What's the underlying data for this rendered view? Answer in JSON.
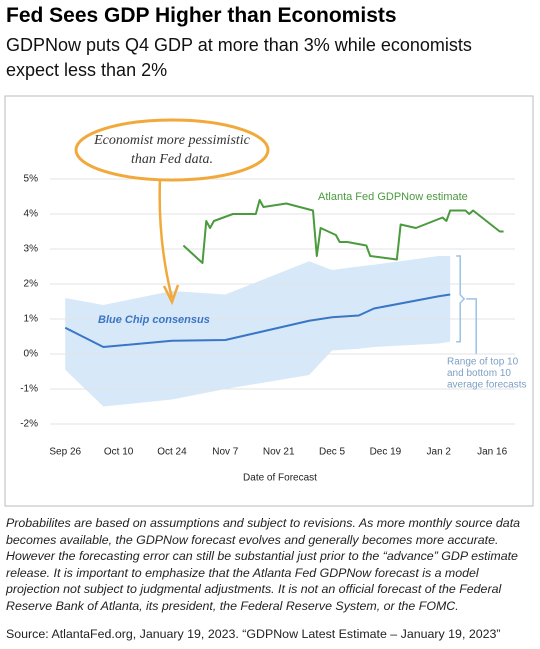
{
  "title": "Fed Sees GDP Higher than Economists",
  "subtitle": "GDPNow puts Q4 GDP at more than 3% while economists expect less than 2%",
  "chart_data": {
    "type": "line",
    "xlabel": "Date of Forecast",
    "xlim": [
      "Sep 22",
      "Jan 22"
    ],
    "xticks": [
      "Sep 26",
      "Oct 10",
      "Oct 24",
      "Nov 7",
      "Nov 21",
      "Dec 5",
      "Dec 19",
      "Jan 2",
      "Jan 16"
    ],
    "ylim": [
      -2.5,
      5.5
    ],
    "yticks": [
      {
        "value": 5,
        "label": "5%"
      },
      {
        "value": 4,
        "label": "4%"
      },
      {
        "value": 3,
        "label": "3%"
      },
      {
        "value": 2,
        "label": "2%"
      },
      {
        "value": 1,
        "label": "1%"
      },
      {
        "value": 0,
        "label": "0%"
      },
      {
        "value": -1,
        "label": "-1%"
      },
      {
        "value": -2,
        "label": "-2%"
      }
    ],
    "grid": true,
    "series": [
      {
        "name": "Atlanta Fed GDPNow estimate",
        "color": "#4a9a3e",
        "x": [
          "Oct 27",
          "Nov 1",
          "Nov 2",
          "Nov 3",
          "Nov 4",
          "Nov 9",
          "Nov 15",
          "Nov 16",
          "Nov 17",
          "Nov 23",
          "Nov 30",
          "Dec 1",
          "Dec 2",
          "Dec 6",
          "Dec 7",
          "Dec 9",
          "Dec 14",
          "Dec 15",
          "Dec 22",
          "Dec 23",
          "Dec 27",
          "Jan 3",
          "Jan 4",
          "Jan 5",
          "Jan 9",
          "Jan 10",
          "Jan 11",
          "Jan 18",
          "Jan 19"
        ],
        "values": [
          3.1,
          2.6,
          3.8,
          3.6,
          3.8,
          4.0,
          4.0,
          4.4,
          4.2,
          4.3,
          4.1,
          2.8,
          3.6,
          3.4,
          3.2,
          3.2,
          3.1,
          2.8,
          2.7,
          3.7,
          3.6,
          3.9,
          3.8,
          4.1,
          4.1,
          4.0,
          4.1,
          3.5,
          3.5
        ]
      },
      {
        "name": "Blue Chip consensus",
        "color": "#3a76c6",
        "x": [
          "Sep 26",
          "Oct 6",
          "Oct 24",
          "Nov 7",
          "Nov 29",
          "Dec 5",
          "Dec 12",
          "Dec 16",
          "Jan 2",
          "Jan 5"
        ],
        "values": [
          0.75,
          0.2,
          0.38,
          0.4,
          0.95,
          1.05,
          1.1,
          1.3,
          1.65,
          1.7
        ]
      }
    ],
    "band": {
      "label": [
        "Range of top 10",
        "and bottom 10",
        "average forecasts"
      ],
      "color": "#d7e8f8",
      "x": [
        "Sep 26",
        "Oct 6",
        "Oct 24",
        "Nov 7",
        "Nov 29",
        "Dec 5",
        "Dec 12",
        "Dec 16",
        "Jan 2",
        "Jan 5"
      ],
      "high": [
        1.6,
        1.4,
        1.8,
        1.7,
        2.65,
        2.4,
        2.5,
        2.55,
        2.8,
        2.8
      ],
      "low": [
        -0.45,
        -1.5,
        -1.3,
        -1.0,
        -0.6,
        0.1,
        0.15,
        0.2,
        0.3,
        0.35
      ]
    },
    "annotation": [
      "Economist more pessimistic",
      "than Fed data."
    ]
  },
  "notes": "Probabilites are based on assumptions and subject to revisions. As more monthly source data becomes available, the GDPNow forecast evolves and generally becomes more accurate. However the forecasting error can still be substantial just prior to the “advance” GDP estimate release. It is important to emphasize that the Atlanta Fed GDPNow forecast is a model projection not subject to judgmental adjustments. It is not an official forecast of the Federal Reserve Bank of Atlanta, its president, the Federal Reserve System, or the FOMC.",
  "source": "Source: AtlantaFed.org, January 19, 2023. “GDPNow Latest Estimate – January 19, 2023”"
}
